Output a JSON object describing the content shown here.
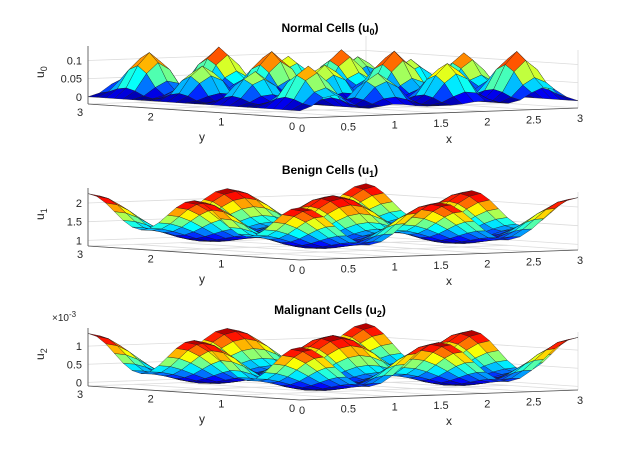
{
  "chart_data": [
    {
      "type": "surface",
      "title": "Normal Cells (u",
      "title_sub": "0",
      "title_end": ")",
      "xlabel": "x",
      "ylabel": "y",
      "zlabel": "u",
      "zlabel_sub": "0",
      "x_ticks": [
        "0",
        "0.5",
        "1",
        "1.5",
        "2",
        "2.5",
        "3"
      ],
      "y_ticks": [
        "0",
        "1",
        "2",
        "3"
      ],
      "z_ticks": [
        "0",
        "0.05",
        "0.1"
      ],
      "z_tick_values": [
        0,
        0.05,
        0.1
      ],
      "zlim": [
        -0.02,
        0.14
      ],
      "xlim": [
        0,
        3
      ],
      "ylim": [
        0,
        3
      ],
      "scale_note": "",
      "mesh_resolution": 24,
      "surface_model": "base + amp * sin^2(wx*x) * sin^2(wy*y)",
      "base": 0.0,
      "amplitude": 0.13,
      "wx": 3.14159,
      "wy": 3.14159
    },
    {
      "type": "surface",
      "title": "Benign Cells (u",
      "title_sub": "1",
      "title_end": ")",
      "xlabel": "x",
      "ylabel": "y",
      "zlabel": "u",
      "zlabel_sub": "1",
      "x_ticks": [
        "0",
        "0.5",
        "1",
        "1.5",
        "2",
        "2.5",
        "3"
      ],
      "y_ticks": [
        "0",
        "1",
        "2",
        "3"
      ],
      "z_ticks": [
        "1",
        "1.5",
        "2"
      ],
      "z_tick_values": [
        1,
        1.5,
        2
      ],
      "zlim": [
        0.85,
        2.4
      ],
      "xlim": [
        0,
        3
      ],
      "ylim": [
        0,
        3
      ],
      "scale_note": "",
      "mesh_resolution": 24,
      "surface_model": "base + amp * (1 + cos(wx*x))/2 * (1 + cos(wy*y))/2 ... smooth waves",
      "base": 1.0,
      "amplitude": 1.25,
      "wx": 2.0944,
      "wy": 2.0944
    },
    {
      "type": "surface",
      "title": "Malignant Cells (u",
      "title_sub": "2",
      "title_end": ")",
      "xlabel": "x",
      "ylabel": "y",
      "zlabel": "u",
      "zlabel_sub": "2",
      "x_ticks": [
        "0",
        "0.5",
        "1",
        "1.5",
        "2",
        "2.5",
        "3"
      ],
      "y_ticks": [
        "0",
        "1",
        "2",
        "3"
      ],
      "z_ticks": [
        "0",
        "0.5",
        "1"
      ],
      "z_tick_values": [
        0,
        0.5,
        1
      ],
      "zlim": [
        -0.1,
        1.5
      ],
      "xlim": [
        0,
        3
      ],
      "ylim": [
        0,
        3
      ],
      "scale_note_prefix": "×10",
      "scale_note_exp": "-3",
      "mesh_resolution": 24,
      "surface_model": "smooth waves, units of 1e-3",
      "base": 0.0,
      "amplitude": 1.35,
      "wx": 2.0944,
      "wy": 2.0944
    }
  ]
}
